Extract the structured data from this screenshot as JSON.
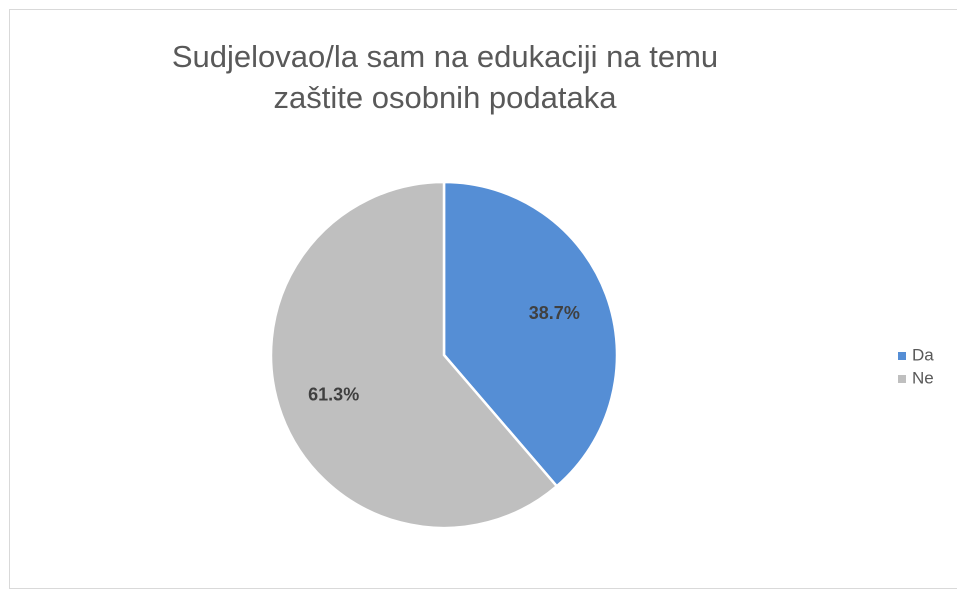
{
  "chart_data": {
    "type": "pie",
    "title": "Sudjelovao/la sam na edukaciji na temu zaštite osobnih podataka",
    "categories": [
      "Da",
      "Ne"
    ],
    "values": [
      38.7,
      61.3
    ],
    "value_labels": [
      "38.7%",
      "61.3%"
    ],
    "colors": [
      "#558ed5",
      "#bfbfbf"
    ],
    "legend": "right"
  }
}
